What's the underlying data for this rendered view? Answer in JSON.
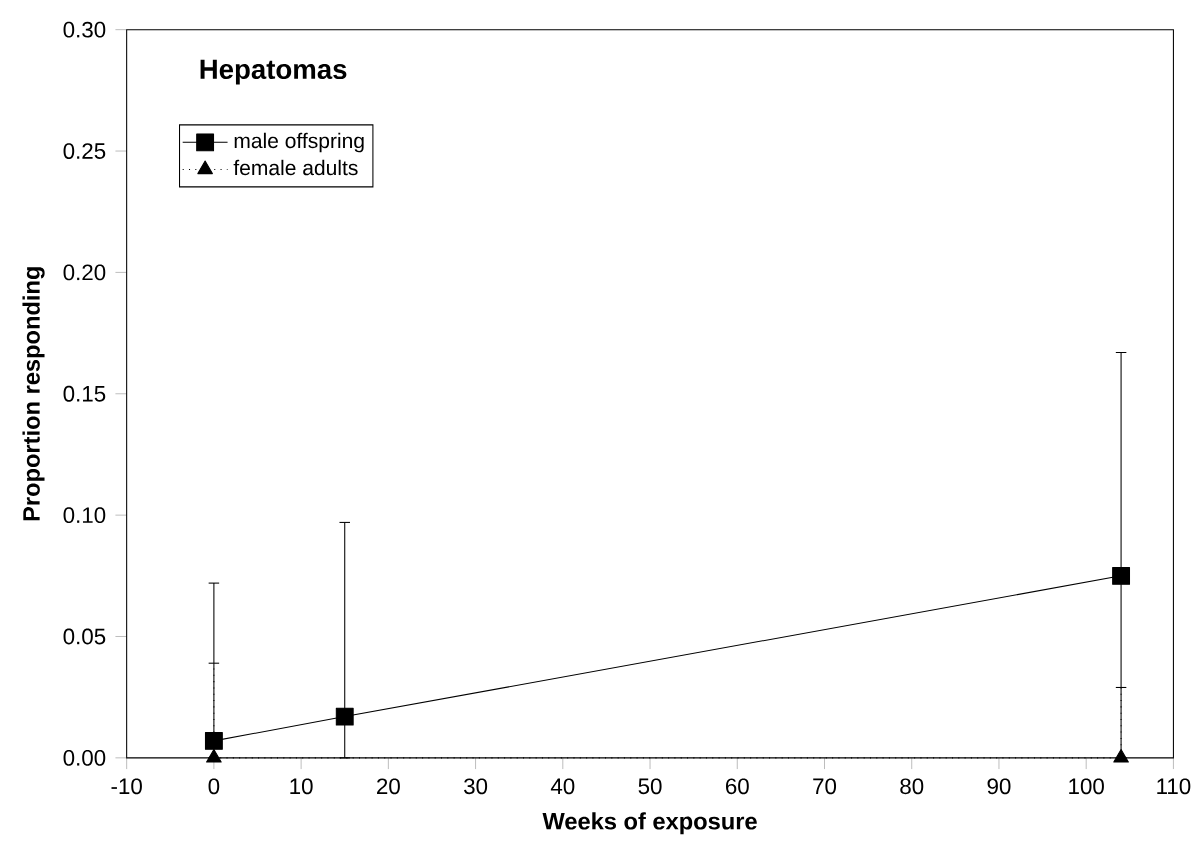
{
  "chart_data": {
    "type": "line",
    "title": "Hepatomas",
    "xlabel": "Weeks of exposure",
    "ylabel": "Proportion responding",
    "xlim": [
      -10,
      110
    ],
    "xticks": [
      -10,
      0,
      10,
      20,
      30,
      40,
      50,
      60,
      70,
      80,
      90,
      100,
      110
    ],
    "ylim": [
      0,
      0.3
    ],
    "yticks": [
      {
        "value": 0,
        "label": "0.00"
      },
      {
        "value": 0.05,
        "label": "0.05"
      },
      {
        "value": 0.1,
        "label": "0.10"
      },
      {
        "value": 0.15,
        "label": "0.15"
      },
      {
        "value": 0.2,
        "label": "0.20"
      },
      {
        "value": 0.25,
        "label": "0.25"
      },
      {
        "value": 0.3,
        "label": "0.30"
      }
    ],
    "grid": false,
    "legend": "top left",
    "series": [
      {
        "name": "male offspring",
        "color": "#000000",
        "marker": "square",
        "line_style": "solid",
        "x": [
          0,
          15,
          104
        ],
        "values": [
          0.007,
          0.017,
          0.075
        ],
        "errors": [
          [
            0,
            0.072
          ],
          [
            0,
            0.097
          ],
          [
            0,
            0.167
          ]
        ]
      },
      {
        "name": "female adults",
        "color": "#000000",
        "marker": "triangle",
        "line_style": "dotted",
        "x": [
          0,
          104
        ],
        "values": [
          0,
          0
        ],
        "errors": [
          [
            0,
            0.039
          ],
          [
            0,
            0.029
          ]
        ]
      }
    ]
  }
}
